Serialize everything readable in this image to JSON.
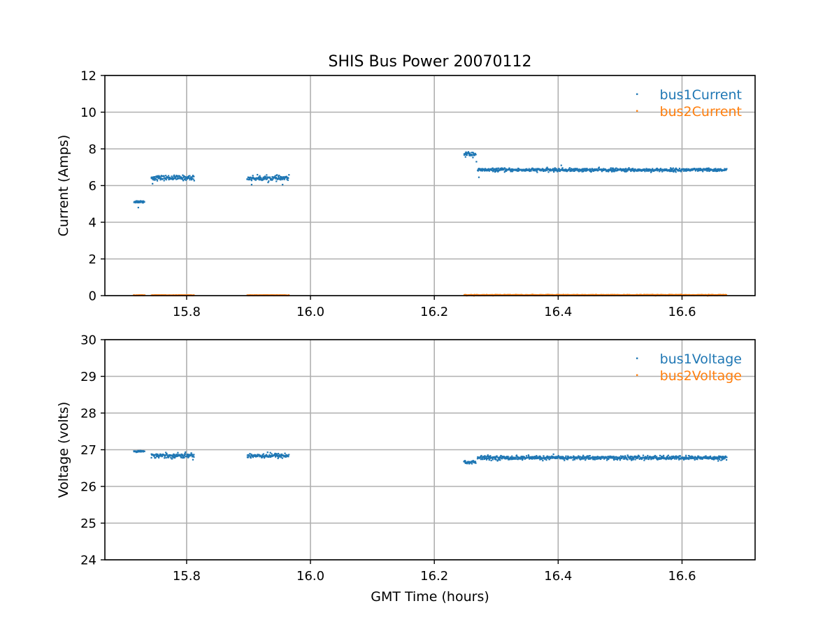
{
  "figure_title": "SHIS Bus Power 20070112",
  "chart_data": [
    {
      "type": "scatter",
      "title": "SHIS Bus Power 20070112",
      "xlabel": "",
      "ylabel": "Current (Amps)",
      "xlim": [
        15.668,
        16.718
      ],
      "ylim": [
        0,
        12
      ],
      "x_ticks": [
        15.8,
        16.0,
        16.2,
        16.4,
        16.6
      ],
      "x_tick_labels": [
        "15.8",
        "16.0",
        "16.2",
        "16.4",
        "16.6"
      ],
      "y_ticks": [
        0,
        2,
        4,
        6,
        8,
        10,
        12
      ],
      "y_tick_labels": [
        "0",
        "2",
        "4",
        "6",
        "8",
        "10",
        "12"
      ],
      "grid": true,
      "legend_position": "top-right",
      "series": [
        {
          "name": "bus1Current",
          "color": "#1f77b4",
          "segments": [
            {
              "x_start": 15.715,
              "x_end": 15.732,
              "y_mean": 5.12,
              "spread": 0.06
            },
            {
              "x_start": 15.743,
              "x_end": 15.812,
              "y_mean": 6.42,
              "spread": 0.12
            },
            {
              "x_start": 15.898,
              "x_end": 15.965,
              "y_mean": 6.4,
              "spread": 0.12
            },
            {
              "x_start": 16.248,
              "x_end": 16.267,
              "y_mean": 7.72,
              "spread": 0.12
            },
            {
              "x_start": 16.27,
              "x_end": 16.672,
              "y_mean": 6.85,
              "spread": 0.08
            }
          ],
          "outliers": [
            [
              15.722,
              4.8
            ],
            [
              15.745,
              6.1
            ],
            [
              15.905,
              6.05
            ],
            [
              15.955,
              6.05
            ],
            [
              16.268,
              7.3
            ],
            [
              16.272,
              6.45
            ],
            [
              16.405,
              7.1
            ]
          ]
        },
        {
          "name": "bus2Current",
          "color": "#ff7f0e",
          "segments": [
            {
              "x_start": 15.715,
              "x_end": 15.732,
              "y_mean": 0.02,
              "spread": 0.01
            },
            {
              "x_start": 15.743,
              "x_end": 15.812,
              "y_mean": 0.02,
              "spread": 0.01
            },
            {
              "x_start": 15.898,
              "x_end": 15.965,
              "y_mean": 0.02,
              "spread": 0.01
            },
            {
              "x_start": 16.248,
              "x_end": 16.672,
              "y_mean": 0.03,
              "spread": 0.02
            }
          ],
          "outliers": []
        }
      ]
    },
    {
      "type": "scatter",
      "title": "",
      "xlabel": "GMT Time (hours)",
      "ylabel": "Voltage (volts)",
      "xlim": [
        15.668,
        16.718
      ],
      "ylim": [
        24,
        30
      ],
      "x_ticks": [
        15.8,
        16.0,
        16.2,
        16.4,
        16.6
      ],
      "x_tick_labels": [
        "15.8",
        "16.0",
        "16.2",
        "16.4",
        "16.6"
      ],
      "y_ticks": [
        24,
        25,
        26,
        27,
        28,
        29,
        30
      ],
      "y_tick_labels": [
        "24",
        "25",
        "26",
        "27",
        "28",
        "29",
        "30"
      ],
      "grid": true,
      "legend_position": "top-right",
      "series": [
        {
          "name": "bus1Voltage",
          "color": "#1f77b4",
          "segments": [
            {
              "x_start": 15.715,
              "x_end": 15.732,
              "y_mean": 26.96,
              "spread": 0.02
            },
            {
              "x_start": 15.743,
              "x_end": 15.812,
              "y_mean": 26.84,
              "spread": 0.06
            },
            {
              "x_start": 15.898,
              "x_end": 15.965,
              "y_mean": 26.84,
              "spread": 0.06
            },
            {
              "x_start": 16.248,
              "x_end": 16.267,
              "y_mean": 26.66,
              "spread": 0.05
            },
            {
              "x_start": 16.27,
              "x_end": 16.672,
              "y_mean": 26.78,
              "spread": 0.05
            }
          ],
          "outliers": []
        },
        {
          "name": "bus2Voltage",
          "color": "#ff7f0e",
          "segments": [],
          "outliers": []
        }
      ]
    }
  ]
}
